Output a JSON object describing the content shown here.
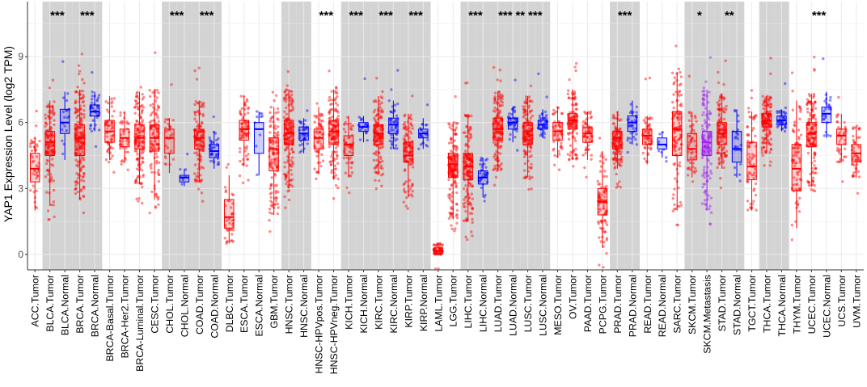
{
  "chart_data": {
    "type": "boxplot",
    "ylabel": "YAP1 Expression Level (log2 TPM)",
    "xlabel": "",
    "ylim": [
      -0.7,
      11.5
    ],
    "yticks": [
      0,
      3,
      6,
      9
    ],
    "grid": true,
    "colors": {
      "tumor": "#ff0000",
      "normal": "#0000ff",
      "metastasis": "#a020f0",
      "shade": "#d3d3d3",
      "grid": "#ebebeb",
      "axis": "#333333"
    },
    "categories": [
      {
        "label": "ACC.Tumor",
        "group": "tumor",
        "stats": [
          2.0,
          3.3,
          3.9,
          4.6,
          5.3
        ],
        "n": 45,
        "shade": false,
        "sig": ""
      },
      {
        "label": "BLCA.Tumor",
        "group": "tumor",
        "stats": [
          2.2,
          4.5,
          5.1,
          5.6,
          7.0
        ],
        "n": 140,
        "shade": true,
        "sig": "***"
      },
      {
        "label": "BLCA.Normal",
        "group": "normal",
        "stats": [
          4.3,
          5.5,
          6.0,
          6.6,
          7.4
        ],
        "n": 19,
        "shade": true,
        "sig": ""
      },
      {
        "label": "BRCA.Tumor",
        "group": "tumor",
        "stats": [
          2.5,
          4.5,
          5.3,
          5.9,
          7.5
        ],
        "n": 200,
        "shade": true,
        "sig": "***"
      },
      {
        "label": "BRCA.Normal",
        "group": "normal",
        "stats": [
          5.6,
          6.3,
          6.5,
          6.8,
          7.4
        ],
        "n": 40,
        "shade": true,
        "sig": ""
      },
      {
        "label": "BRCA-Basal.Tumor",
        "group": "tumor",
        "stats": [
          4.3,
          5.1,
          5.6,
          6.1,
          7.2
        ],
        "n": 60,
        "shade": false,
        "sig": ""
      },
      {
        "label": "BRCA-Her2.Tumor",
        "group": "tumor",
        "stats": [
          4.2,
          4.9,
          5.3,
          5.7,
          6.5
        ],
        "n": 40,
        "shade": false,
        "sig": ""
      },
      {
        "label": "BRCA-Luminal.Tumor",
        "group": "tumor",
        "stats": [
          3.2,
          4.8,
          5.3,
          5.9,
          7.4
        ],
        "n": 150,
        "shade": false,
        "sig": ""
      },
      {
        "label": "CESC.Tumor",
        "group": "tumor",
        "stats": [
          2.5,
          4.7,
          5.3,
          5.9,
          7.5
        ],
        "n": 120,
        "shade": false,
        "sig": ""
      },
      {
        "label": "CHOL.Tumor",
        "group": "tumor",
        "stats": [
          3.7,
          4.6,
          5.3,
          5.7,
          6.2
        ],
        "n": 28,
        "shade": true,
        "sig": "***"
      },
      {
        "label": "CHOL.Normal",
        "group": "normal",
        "stats": [
          3.1,
          3.3,
          3.5,
          3.6,
          3.9
        ],
        "n": 8,
        "shade": true,
        "sig": ""
      },
      {
        "label": "COAD.Tumor",
        "group": "tumor",
        "stats": [
          3.3,
          4.8,
          5.3,
          5.7,
          7.0
        ],
        "n": 140,
        "shade": true,
        "sig": "***"
      },
      {
        "label": "COAD.Normal",
        "group": "normal",
        "stats": [
          3.9,
          4.4,
          4.7,
          5.0,
          5.6
        ],
        "n": 35,
        "shade": true,
        "sig": ""
      },
      {
        "label": "DLBC.Tumor",
        "group": "tumor",
        "stats": [
          0.5,
          1.2,
          1.7,
          2.5,
          3.6
        ],
        "n": 40,
        "shade": false,
        "sig": ""
      },
      {
        "label": "ESCA.Tumor",
        "group": "tumor",
        "stats": [
          4.0,
          5.2,
          5.7,
          6.1,
          7.2
        ],
        "n": 80,
        "shade": false,
        "sig": ""
      },
      {
        "label": "ESCA.Normal",
        "group": "normal",
        "stats": [
          3.6,
          4.6,
          5.7,
          6.0,
          6.5
        ],
        "n": 10,
        "shade": false,
        "sig": ""
      },
      {
        "label": "GBM.Tumor",
        "group": "tumor",
        "stats": [
          1.8,
          3.8,
          4.8,
          5.3,
          6.7
        ],
        "n": 120,
        "shade": false,
        "sig": ""
      },
      {
        "label": "HNSC.Tumor",
        "group": "tumor",
        "stats": [
          3.0,
          5.0,
          5.5,
          6.1,
          7.5
        ],
        "n": 180,
        "shade": true,
        "sig": ""
      },
      {
        "label": "HNSC.Normal",
        "group": "normal",
        "stats": [
          4.6,
          5.2,
          5.5,
          5.8,
          6.2
        ],
        "n": 35,
        "shade": true,
        "sig": ""
      },
      {
        "label": "HNSC-HPVpos.Tumor",
        "group": "tumor",
        "stats": [
          3.7,
          4.8,
          5.3,
          5.7,
          6.7
        ],
        "n": 60,
        "shade": false,
        "sig": "***"
      },
      {
        "label": "HNSC-HPVneg.Tumor",
        "group": "tumor",
        "stats": [
          3.4,
          5.0,
          5.6,
          6.1,
          7.5
        ],
        "n": 150,
        "shade": false,
        "sig": ""
      },
      {
        "label": "KICH.Tumor",
        "group": "tumor",
        "stats": [
          3.5,
          4.5,
          5.0,
          5.4,
          6.3
        ],
        "n": 50,
        "shade": true,
        "sig": "***"
      },
      {
        "label": "KICH.Normal",
        "group": "normal",
        "stats": [
          5.1,
          5.6,
          5.8,
          6.0,
          6.3
        ],
        "n": 20,
        "shade": true,
        "sig": ""
      },
      {
        "label": "KIRC.Tumor",
        "group": "tumor",
        "stats": [
          3.6,
          5.0,
          5.5,
          5.9,
          7.2
        ],
        "n": 150,
        "shade": true,
        "sig": "***"
      },
      {
        "label": "KIRC.Normal",
        "group": "normal",
        "stats": [
          4.8,
          5.5,
          5.9,
          6.2,
          7.0
        ],
        "n": 50,
        "shade": true,
        "sig": ""
      },
      {
        "label": "KIRP.Tumor",
        "group": "tumor",
        "stats": [
          2.6,
          4.2,
          4.5,
          5.1,
          6.4
        ],
        "n": 120,
        "shade": true,
        "sig": "***"
      },
      {
        "label": "KIRP.Normal",
        "group": "normal",
        "stats": [
          4.8,
          5.3,
          5.5,
          5.7,
          6.2
        ],
        "n": 25,
        "shade": true,
        "sig": ""
      },
      {
        "label": "LAML.Tumor",
        "group": "tumor",
        "stats": [
          0.0,
          0.05,
          0.15,
          0.3,
          0.5
        ],
        "n": 60,
        "shade": false,
        "sig": ""
      },
      {
        "label": "LGG.Tumor",
        "group": "tumor",
        "stats": [
          1.6,
          3.5,
          4.1,
          4.6,
          6.0
        ],
        "n": 180,
        "shade": false,
        "sig": ""
      },
      {
        "label": "LIHC.Tumor",
        "group": "tumor",
        "stats": [
          1.5,
          3.4,
          4.0,
          4.6,
          6.4
        ],
        "n": 170,
        "shade": true,
        "sig": "***"
      },
      {
        "label": "LIHC.Normal",
        "group": "normal",
        "stats": [
          2.6,
          3.2,
          3.5,
          3.8,
          4.4
        ],
        "n": 35,
        "shade": true,
        "sig": ""
      },
      {
        "label": "LUAD.Tumor",
        "group": "tumor",
        "stats": [
          3.8,
          5.2,
          5.7,
          6.2,
          7.4
        ],
        "n": 160,
        "shade": true,
        "sig": "***"
      },
      {
        "label": "LUAD.Normal",
        "group": "normal",
        "stats": [
          5.1,
          5.7,
          6.0,
          6.2,
          6.7
        ],
        "n": 40,
        "shade": true,
        "sig": "**"
      },
      {
        "label": "LUSC.Tumor",
        "group": "tumor",
        "stats": [
          3.5,
          5.0,
          5.6,
          6.0,
          7.2
        ],
        "n": 160,
        "shade": true,
        "sig": "***"
      },
      {
        "label": "LUSC.Normal",
        "group": "normal",
        "stats": [
          5.3,
          5.7,
          5.9,
          6.1,
          6.6
        ],
        "n": 40,
        "shade": true,
        "sig": ""
      },
      {
        "label": "MESO.Tumor",
        "group": "tumor",
        "stats": [
          4.4,
          5.2,
          5.6,
          6.0,
          6.7
        ],
        "n": 50,
        "shade": false,
        "sig": ""
      },
      {
        "label": "OV.Tumor",
        "group": "tumor",
        "stats": [
          4.3,
          5.7,
          6.1,
          6.4,
          7.5
        ],
        "n": 120,
        "shade": false,
        "sig": ""
      },
      {
        "label": "PAAD.Tumor",
        "group": "tumor",
        "stats": [
          4.3,
          5.1,
          5.5,
          5.8,
          6.5
        ],
        "n": 60,
        "shade": false,
        "sig": ""
      },
      {
        "label": "PCPG.Tumor",
        "group": "tumor",
        "stats": [
          0.3,
          1.8,
          2.4,
          3.0,
          4.7
        ],
        "n": 90,
        "shade": false,
        "sig": ""
      },
      {
        "label": "PRAD.Tumor",
        "group": "tumor",
        "stats": [
          3.9,
          4.8,
          5.3,
          5.6,
          6.5
        ],
        "n": 140,
        "shade": true,
        "sig": "***"
      },
      {
        "label": "PRAD.Normal",
        "group": "normal",
        "stats": [
          5.0,
          5.6,
          6.0,
          6.3,
          7.0
        ],
        "n": 35,
        "shade": true,
        "sig": ""
      },
      {
        "label": "READ.Tumor",
        "group": "tumor",
        "stats": [
          4.1,
          5.0,
          5.4,
          5.7,
          6.3
        ],
        "n": 60,
        "shade": false,
        "sig": ""
      },
      {
        "label": "READ.Normal",
        "group": "normal",
        "stats": [
          4.4,
          4.8,
          5.0,
          5.3,
          5.6
        ],
        "n": 10,
        "shade": false,
        "sig": ""
      },
      {
        "label": "SARC.Tumor",
        "group": "tumor",
        "stats": [
          2.0,
          4.5,
          5.7,
          6.5,
          8.3
        ],
        "n": 120,
        "shade": false,
        "sig": ""
      },
      {
        "label": "SKCM.Tumor",
        "group": "tumor",
        "stats": [
          3.5,
          4.3,
          4.8,
          5.5,
          6.5
        ],
        "n": 50,
        "shade": true,
        "sig": "*"
      },
      {
        "label": "SKCM.Metastasis",
        "group": "metastasis",
        "stats": [
          2.0,
          4.5,
          5.1,
          5.6,
          7.5
        ],
        "n": 150,
        "shade": true,
        "sig": ""
      },
      {
        "label": "STAD.Tumor",
        "group": "tumor",
        "stats": [
          3.9,
          5.0,
          5.5,
          6.0,
          7.3
        ],
        "n": 140,
        "shade": true,
        "sig": "**"
      },
      {
        "label": "STAD.Normal",
        "group": "normal",
        "stats": [
          3.5,
          4.2,
          4.8,
          5.6,
          6.6
        ],
        "n": 25,
        "shade": true,
        "sig": ""
      },
      {
        "label": "TGCT.Tumor",
        "group": "tumor",
        "stats": [
          2.0,
          3.4,
          4.0,
          5.1,
          6.5
        ],
        "n": 70,
        "shade": false,
        "sig": ""
      },
      {
        "label": "THCA.Tumor",
        "group": "tumor",
        "stats": [
          4.6,
          5.8,
          6.1,
          6.4,
          7.2
        ],
        "n": 150,
        "shade": true,
        "sig": ""
      },
      {
        "label": "THCA.Normal",
        "group": "normal",
        "stats": [
          5.6,
          5.9,
          6.1,
          6.3,
          6.6
        ],
        "n": 40,
        "shade": true,
        "sig": ""
      },
      {
        "label": "THYM.Tumor",
        "group": "tumor",
        "stats": [
          1.2,
          2.9,
          3.9,
          5.0,
          7.0
        ],
        "n": 80,
        "shade": false,
        "sig": ""
      },
      {
        "label": "UCEC.Tumor",
        "group": "tumor",
        "stats": [
          3.1,
          4.9,
          5.5,
          6.0,
          7.3
        ],
        "n": 160,
        "shade": false,
        "sig": "***"
      },
      {
        "label": "UCEC.Normal",
        "group": "normal",
        "stats": [
          5.3,
          6.0,
          6.4,
          6.7,
          7.4
        ],
        "n": 25,
        "shade": false,
        "sig": ""
      },
      {
        "label": "UCS.Tumor",
        "group": "tumor",
        "stats": [
          4.2,
          5.0,
          5.4,
          5.7,
          6.4
        ],
        "n": 40,
        "shade": false,
        "sig": ""
      },
      {
        "label": "UVM.Tumor",
        "group": "tumor",
        "stats": [
          3.5,
          4.2,
          4.6,
          5.0,
          5.8
        ],
        "n": 50,
        "shade": false,
        "sig": ""
      }
    ]
  }
}
